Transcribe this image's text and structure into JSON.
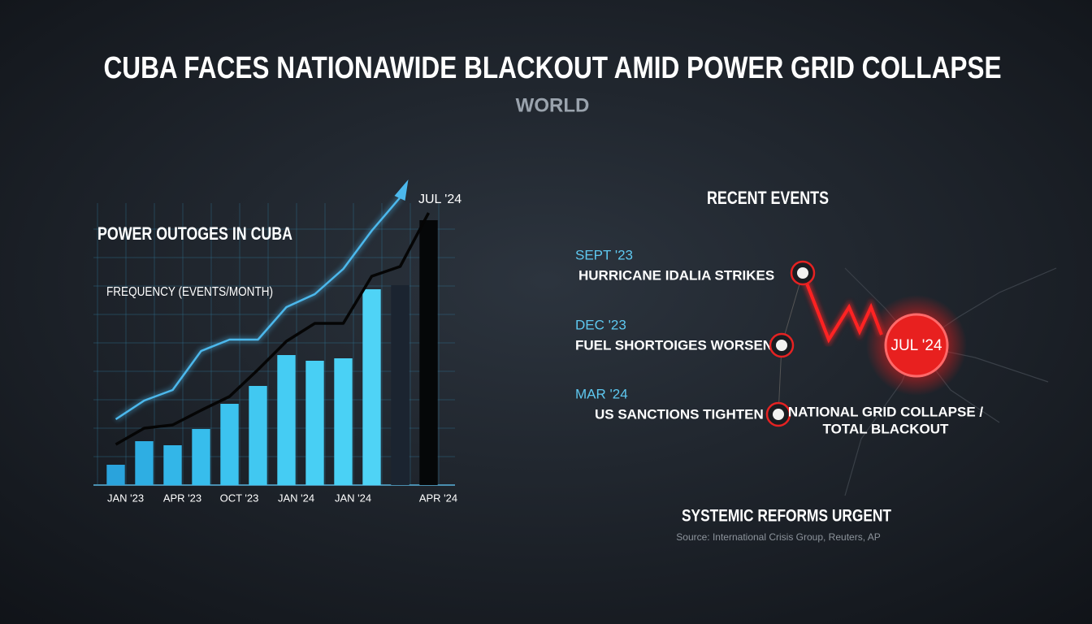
{
  "header": {
    "title": "CUBA FACES NATIONAWIDE BLACKOUT AMID POWER GRID COLLAPSE",
    "section": "WORLD"
  },
  "chart_data": {
    "type": "bar",
    "title": "POWER OUTOGES IN CUBA",
    "y_label": "FREQUENCY (EVENTS/MONTH)",
    "categories": [
      "JAN '23",
      null,
      "APR '23",
      null,
      "OCT '23",
      null,
      "JAN '24",
      null,
      "JAN '24",
      null,
      null,
      "APR '24"
    ],
    "values": [
      2.5,
      5.4,
      4.9,
      6.9,
      10,
      12.2,
      16,
      15.3,
      15.6,
      24.1,
      24.6,
      32.6
    ],
    "colors": [
      "#2aa3dc",
      "#2eaee3",
      "#33b6e8",
      "#37bdec",
      "#3cc3ef",
      "#41c8f1",
      "#45ccf3",
      "#48cff4",
      "#4ad1f5",
      "#4fd3f6",
      "#1b2430",
      "#050708"
    ],
    "series": [
      {
        "color": "#4cb8ec",
        "values": [
          8.1,
          10.4,
          11.7,
          16.5,
          17.9,
          17.9,
          21.9,
          23.5,
          26.6,
          31.3,
          35.4,
          null
        ]
      },
      {
        "color": "#050505",
        "values": [
          5.0,
          7.0,
          7.4,
          9.2,
          10.9,
          14.2,
          17.7,
          19.9,
          19.9,
          25.7,
          26.9,
          33.5
        ]
      }
    ],
    "annotation": "JUL '24",
    "ylim": [
      0,
      40
    ]
  },
  "events": {
    "title": "RECENT EVENTS",
    "items": [
      {
        "date": "SEPT '23",
        "label": "HURRICANE IDALIA STRIKES"
      },
      {
        "date": "DEC '23",
        "label": "FUEL SHORTOIGES WORSEN"
      },
      {
        "date": "MAR '24",
        "label": "US SANCTIONS TIGHTEN"
      }
    ],
    "highlight": {
      "date": "JUL '24",
      "label_lines": [
        "NATIONAL GRID COLLAPSE /",
        "TOTAL BLACKOUT"
      ]
    }
  },
  "footer": {
    "headline": "SYSTEMIC REFORMS URGENT",
    "source": "Source: International Crisis Group, Reuters, AP"
  }
}
